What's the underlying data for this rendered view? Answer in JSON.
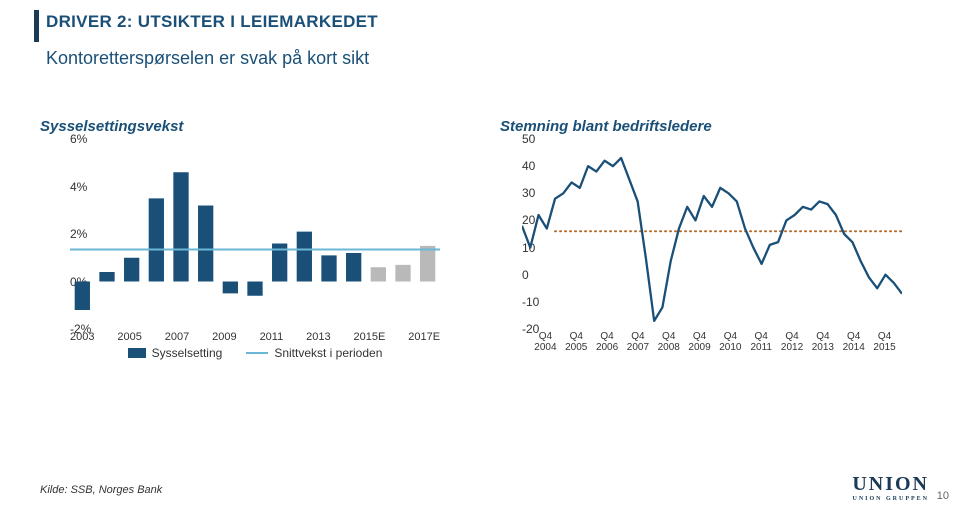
{
  "title": "DRIVER 2: UTSIKTER I LEIEMARKEDET",
  "subtitle": "Kontoretterspørselen er svak på kort sikt",
  "footer": "Kilde: SSB, Norges Bank",
  "logo": {
    "brand": "UNION",
    "subbrand": "UNION GRUPPEN"
  },
  "page_number": "10",
  "left_chart": {
    "title": "Sysselsettingsvekst",
    "type": "bar+line",
    "ymin": -2,
    "ymax": 6,
    "ytick_step": 2,
    "ytick_labels": [
      "-2%",
      "0%",
      "2%",
      "4%",
      "6%"
    ],
    "categories": [
      "2003",
      "",
      "2005",
      "",
      "2007",
      "",
      "2009",
      "",
      "2011",
      "",
      "2013",
      "",
      "2015E",
      "",
      "2017E"
    ],
    "x_show_index": [
      0,
      2,
      4,
      6,
      8,
      10,
      12,
      14
    ],
    "bars": [
      -1.2,
      0.4,
      1.0,
      3.5,
      4.6,
      3.2,
      -0.5,
      -0.6,
      1.6,
      2.1,
      1.1,
      1.2,
      0.6,
      0.7,
      1.5
    ],
    "forecast_from_index": 12,
    "bar_color": "#1a5078",
    "bar_color_forecast": "#b9b9b9",
    "bar_width": 0.62,
    "line_value": 1.35,
    "line_color": "#6bb7d6",
    "line_width": 2,
    "legend": [
      {
        "label": "Sysselsetting",
        "type": "square",
        "color": "#1a5078"
      },
      {
        "label": "Snittvekst i perioden",
        "type": "line",
        "color": "#6bb7d6"
      }
    ],
    "axis_fontsize": 12,
    "background_color": "#ffffff"
  },
  "right_chart": {
    "title": "Stemning blant bedriftsledere",
    "type": "line",
    "ymin": -20,
    "ymax": 50,
    "ytick_step": 10,
    "ytick_labels": [
      "-20",
      "-10",
      "0",
      "10",
      "20",
      "30",
      "40",
      "50"
    ],
    "x_labels": [
      "Q4 2004",
      "Q4 2005",
      "Q4 2006",
      "Q4 2007",
      "Q4 2008",
      "Q4 2009",
      "Q4 2010",
      "Q4 2011",
      "Q4 2012",
      "Q4 2013",
      "Q4 2014",
      "Q4 2015"
    ],
    "series": [
      18,
      10,
      22,
      17,
      28,
      30,
      34,
      32,
      40,
      38,
      42,
      40,
      43,
      35,
      27,
      6,
      -17,
      -12,
      5,
      17,
      25,
      20,
      29,
      25,
      32,
      30,
      27,
      17,
      10,
      4,
      11,
      12,
      20,
      22,
      25,
      24,
      27,
      26,
      22,
      15,
      12,
      5,
      -1,
      -5,
      0,
      -3,
      -7
    ],
    "points_per_quarter": 47,
    "line_color": "#1a5078",
    "line_width": 2.3,
    "ref_line_value": 16,
    "ref_line_color": "#b86a2a",
    "ref_line_dash": "1,4",
    "ref_line_start_index": 4,
    "axis_fontsize": 12,
    "background_color": "#ffffff"
  }
}
